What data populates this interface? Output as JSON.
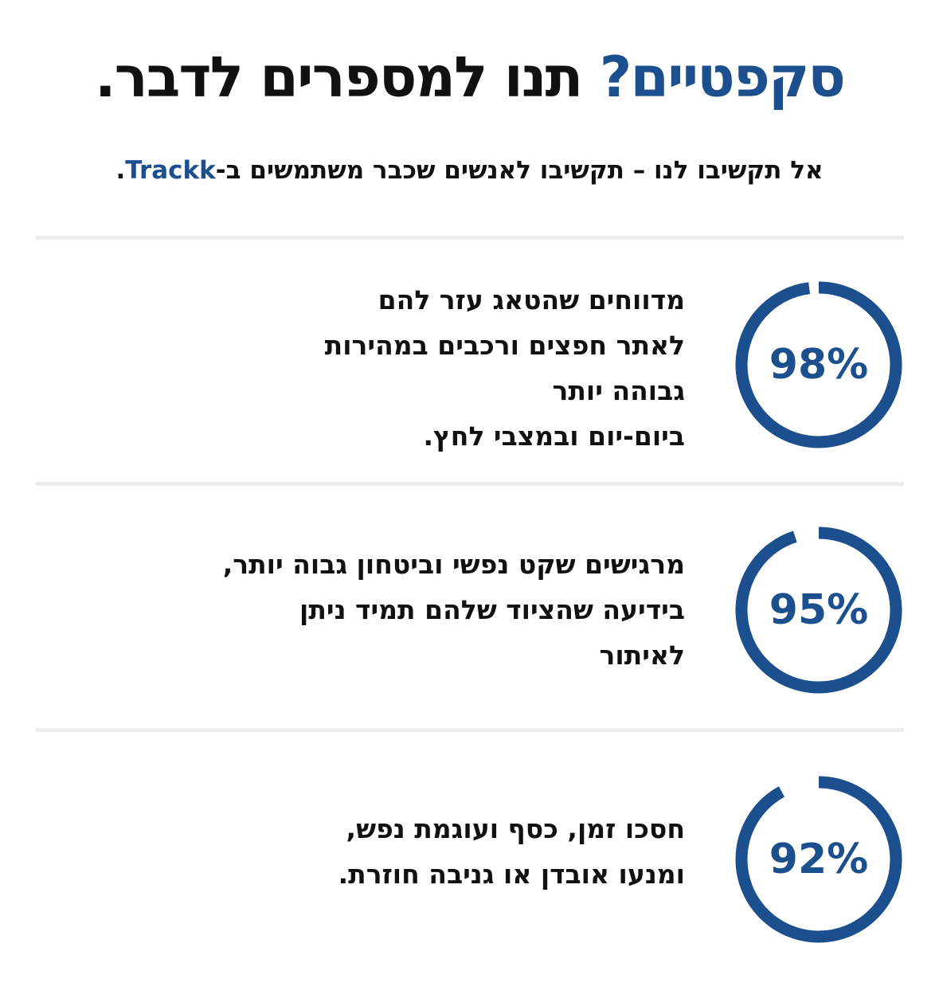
{
  "header": {
    "title_accent": "סקפטיים?",
    "title_rest": " תנו למספרים לדבר.",
    "subtitle_before": "אל תקשיבו לנו – תקשיבו לאנשים שכבר משתמשים ב-",
    "subtitle_brand": "Trackk",
    "subtitle_after": "."
  },
  "colors": {
    "accent": "#1b4f8e",
    "text": "#111111",
    "divider": "#ededed"
  },
  "stats": [
    {
      "percent_label": "98%",
      "percent_value": 98,
      "lines": [
        "מדווחים שהטאג עזר להם",
        "לאתר חפצים ורכבים במהירות",
        "גבוהה יותר",
        "ביום-יום ובמצבי לחץ."
      ]
    },
    {
      "percent_label": "95%",
      "percent_value": 95,
      "lines": [
        "מרגישים שקט נפשי וביטחון גבוה יותר,",
        "בידיעה שהציוד שלהם תמיד ניתן",
        "לאיתור"
      ]
    },
    {
      "percent_label": "92%",
      "percent_value": 92,
      "lines": [
        "חסכו זמן, כסף ועוגמת נפש,",
        "ומנעו אובדן או גניבה חוזרת."
      ]
    }
  ]
}
